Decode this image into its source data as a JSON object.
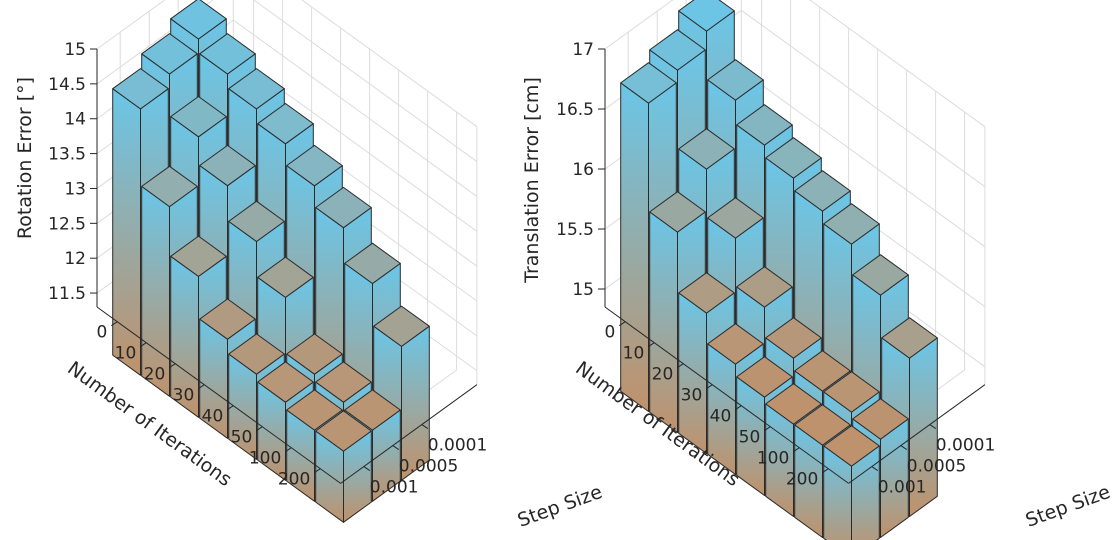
{
  "chart_data": [
    {
      "type": "bar3d",
      "zlabel": "Rotation Error [°]",
      "xlabel": "Number of Iterations",
      "ylabel": "Step Size",
      "iterations": [
        "0",
        "10",
        "20",
        "30",
        "40",
        "50",
        "100",
        "200"
      ],
      "step_sizes": [
        "0.001",
        "0.0005",
        "0.0001"
      ],
      "zlim": [
        11.3,
        15
      ],
      "zticks": [
        "11.5",
        "12",
        "12.5",
        "13",
        "13.5",
        "14",
        "14.5",
        "15"
      ],
      "series": [
        {
          "step_size": "0.001",
          "values": [
            14.4,
            13.3,
            12.6,
            12.0,
            11.8,
            11.7,
            11.6,
            11.6
          ]
        },
        {
          "step_size": "0.0005",
          "values": [
            14.6,
            14.0,
            13.6,
            13.1,
            12.6,
            11.8,
            11.7,
            11.6
          ]
        },
        {
          "step_size": "0.0001",
          "values": [
            14.8,
            14.6,
            14.4,
            14.2,
            13.9,
            13.6,
            13.1,
            12.5
          ]
        }
      ],
      "color_map": {
        "low": "#c0916a",
        "high": "#6ac6e8"
      }
    },
    {
      "type": "bar3d",
      "zlabel": "Translation Error [cm]",
      "xlabel": "Number of Iterations",
      "ylabel": "Step Size",
      "iterations": [
        "0",
        "10",
        "20",
        "30",
        "40",
        "50",
        "100",
        "200"
      ],
      "step_sizes": [
        "0.001",
        "0.0005",
        "0.0001"
      ],
      "zlim": [
        14.85,
        17
      ],
      "zticks": [
        "15",
        "15.5",
        "16",
        "16.5",
        "17"
      ],
      "series": [
        {
          "step_size": "0.001",
          "values": [
            16.7,
            15.8,
            15.3,
            15.05,
            14.95,
            14.9,
            14.9,
            14.9
          ]
        },
        {
          "step_size": "0.0005",
          "values": [
            16.8,
            16.15,
            15.75,
            15.35,
            15.1,
            15.0,
            15.0,
            14.95
          ]
        },
        {
          "step_size": "0.0001",
          "values": [
            16.95,
            16.55,
            16.35,
            16.25,
            16.15,
            16.05,
            15.8,
            15.45
          ]
        }
      ],
      "color_map": {
        "low": "#c0916a",
        "high": "#6ac6e8"
      }
    }
  ]
}
